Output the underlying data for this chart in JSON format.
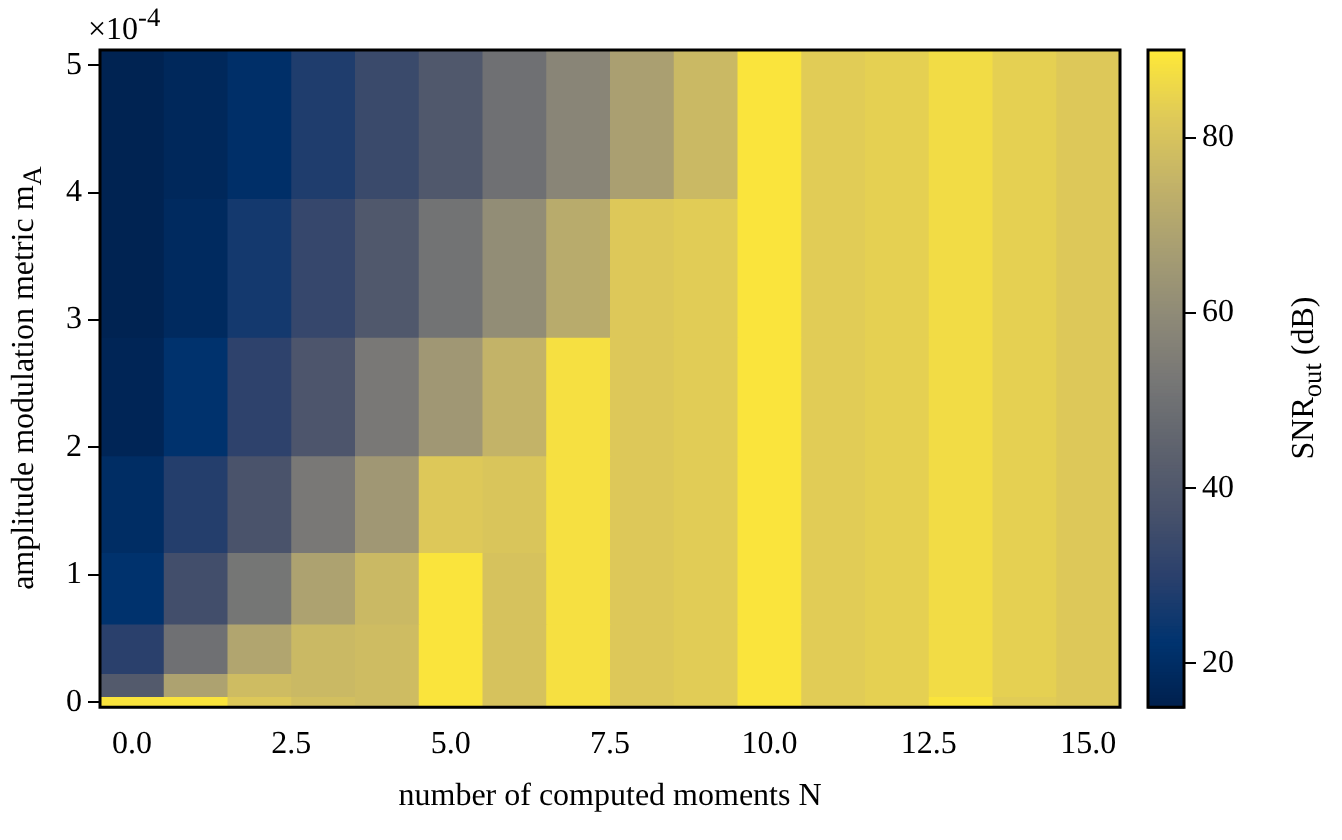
{
  "chart_data": {
    "type": "heatmap",
    "xlabel": "number of computed moments N",
    "ylabel": "amplitude modulation metric m$_{A}$",
    "clabel": "SNR$_{out}$ (dB)",
    "annotations": [
      "×10$^{-4}$"
    ],
    "x": [
      0,
      1,
      2,
      3,
      4,
      5,
      6,
      7,
      8,
      9,
      10,
      11,
      12,
      13,
      14,
      15
    ],
    "y": [
      4.56,
      3.34,
      2.38,
      1.48,
      0.86,
      0.36,
      0.08,
      0
    ],
    "xlim": [
      -0.5,
      15.5
    ],
    "xticks": [
      {
        "value": 0,
        "label": "0.0"
      },
      2.5,
      {
        "value": 5,
        "label": "5.0"
      },
      7.5,
      {
        "value": 10,
        "label": "10.0"
      },
      12.5,
      {
        "value": 15,
        "label": "15.0"
      }
    ],
    "ylim": [
      -0.04,
      5.12
    ],
    "yticks": [
      0,
      1,
      2,
      3,
      4,
      5
    ],
    "clim": [
      15,
      90
    ],
    "cticks": [
      20,
      40,
      60,
      80
    ],
    "grid": false,
    "cells": [
      [
        16,
        18,
        21,
        28,
        34,
        40,
        50,
        58,
        68,
        77,
        89,
        83,
        84,
        87,
        84,
        82
      ],
      [
        16,
        19,
        26,
        33,
        40,
        51,
        61,
        72,
        82,
        83,
        89,
        83,
        84,
        87,
        84,
        82
      ],
      [
        17,
        22,
        31,
        39,
        53,
        65,
        75,
        88,
        82,
        83,
        89,
        83,
        84,
        87,
        84,
        82
      ],
      [
        20,
        29,
        38,
        53,
        65,
        82,
        81,
        88,
        82,
        83,
        89,
        83,
        84,
        87,
        84,
        82
      ],
      [
        22,
        36,
        52,
        69,
        77,
        89,
        80,
        88,
        82,
        83,
        89,
        83,
        84,
        87,
        84,
        82
      ],
      [
        30,
        50,
        70,
        77,
        78,
        89,
        80,
        88,
        82,
        83,
        89,
        83,
        84,
        87,
        84,
        82
      ],
      [
        41,
        69,
        78,
        77,
        78,
        89,
        80,
        88,
        82,
        83,
        89,
        83,
        84,
        87,
        84,
        82
      ],
      [
        89,
        89,
        82,
        79,
        78,
        89,
        80,
        88,
        82,
        83,
        89,
        83,
        84,
        89,
        83,
        82
      ]
    ]
  }
}
